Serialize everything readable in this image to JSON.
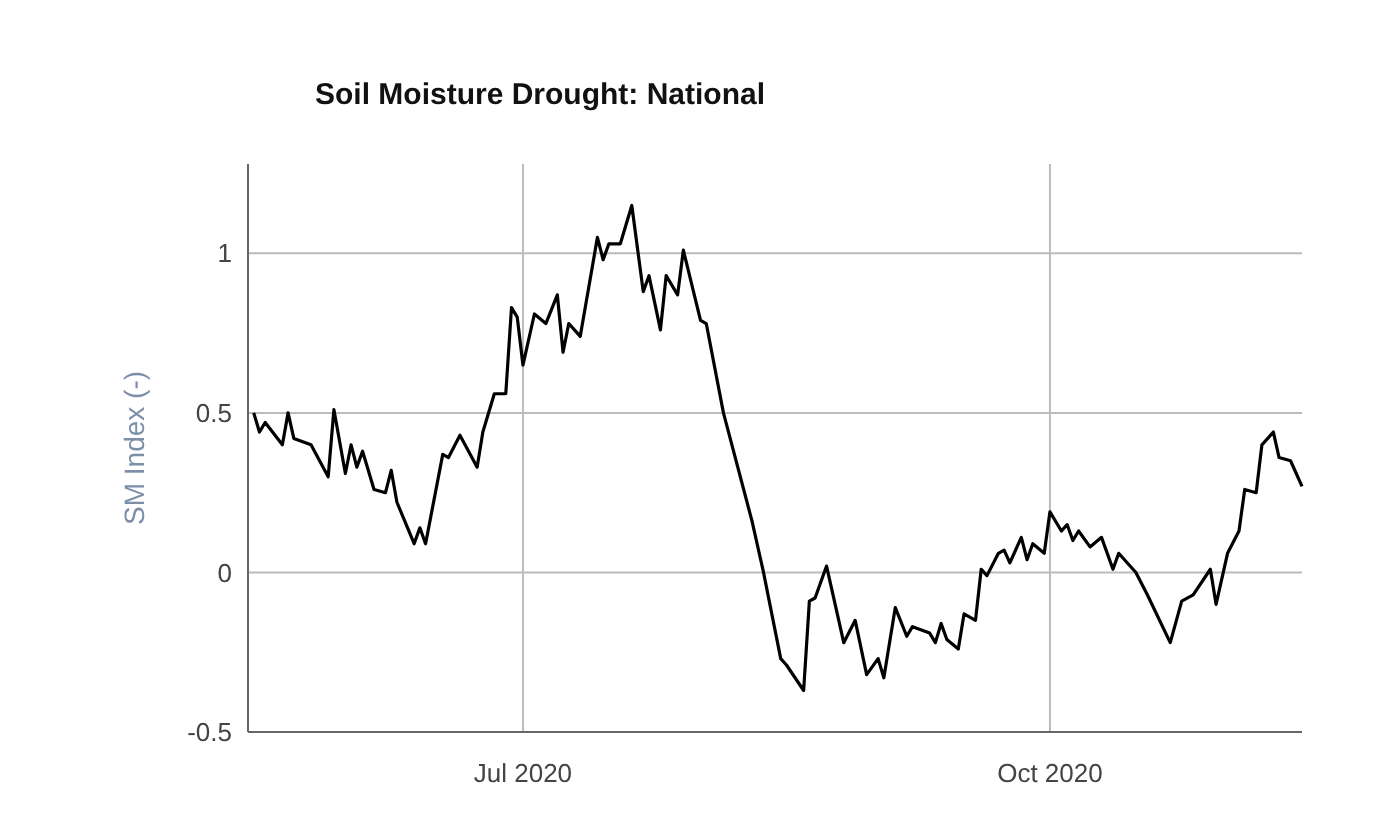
{
  "chart_data": {
    "type": "line",
    "title": "Soil Moisture Drought: National",
    "ylabel": "SM Index (-)",
    "xlim": [
      "2020-05-14",
      "2020-11-14"
    ],
    "xticks": [
      {
        "value": "2020-07-01",
        "label": "Jul 2020"
      },
      {
        "value": "2020-10-01",
        "label": "Oct 2020"
      }
    ],
    "ylim": [
      -0.5,
      1.28
    ],
    "yticks": [
      -0.5,
      0,
      0.5,
      1
    ],
    "grid": true,
    "series": [
      {
        "color": "#000000",
        "x": [
          "2020-05-15",
          "2020-05-16",
          "2020-05-17",
          "2020-05-20",
          "2020-05-21",
          "2020-05-22",
          "2020-05-25",
          "2020-05-28",
          "2020-05-29",
          "2020-05-31",
          "2020-06-01",
          "2020-06-02",
          "2020-06-03",
          "2020-06-05",
          "2020-06-07",
          "2020-06-08",
          "2020-06-09",
          "2020-06-12",
          "2020-06-13",
          "2020-06-14",
          "2020-06-17",
          "2020-06-18",
          "2020-06-20",
          "2020-06-23",
          "2020-06-24",
          "2020-06-26",
          "2020-06-28",
          "2020-06-29",
          "2020-06-30",
          "2020-07-01",
          "2020-07-03",
          "2020-07-05",
          "2020-07-07",
          "2020-07-08",
          "2020-07-09",
          "2020-07-11",
          "2020-07-14",
          "2020-07-15",
          "2020-07-16",
          "2020-07-18",
          "2020-07-20",
          "2020-07-22",
          "2020-07-23",
          "2020-07-25",
          "2020-07-26",
          "2020-07-28",
          "2020-07-29",
          "2020-08-01",
          "2020-08-02",
          "2020-08-05",
          "2020-08-10",
          "2020-08-12",
          "2020-08-15",
          "2020-08-16",
          "2020-08-19",
          "2020-08-20",
          "2020-08-21",
          "2020-08-23",
          "2020-08-26",
          "2020-08-28",
          "2020-08-30",
          "2020-09-01",
          "2020-09-02",
          "2020-09-04",
          "2020-09-06",
          "2020-09-07",
          "2020-09-10",
          "2020-09-11",
          "2020-09-12",
          "2020-09-13",
          "2020-09-15",
          "2020-09-16",
          "2020-09-18",
          "2020-09-19",
          "2020-09-20",
          "2020-09-22",
          "2020-09-23",
          "2020-09-24",
          "2020-09-26",
          "2020-09-27",
          "2020-09-28",
          "2020-09-30",
          "2020-10-01",
          "2020-10-03",
          "2020-10-04",
          "2020-10-05",
          "2020-10-06",
          "2020-10-08",
          "2020-10-10",
          "2020-10-12",
          "2020-10-13",
          "2020-10-16",
          "2020-10-18",
          "2020-10-22",
          "2020-10-24",
          "2020-10-26",
          "2020-10-29",
          "2020-10-30",
          "2020-11-01",
          "2020-11-03",
          "2020-11-04",
          "2020-11-06",
          "2020-11-07",
          "2020-11-09",
          "2020-11-10",
          "2020-11-12",
          "2020-11-14"
        ],
        "values": [
          0.5,
          0.44,
          0.47,
          0.4,
          0.5,
          0.42,
          0.4,
          0.3,
          0.51,
          0.31,
          0.4,
          0.33,
          0.38,
          0.26,
          0.25,
          0.32,
          0.22,
          0.09,
          0.14,
          0.09,
          0.37,
          0.36,
          0.43,
          0.33,
          0.44,
          0.56,
          0.56,
          0.83,
          0.8,
          0.65,
          0.81,
          0.78,
          0.87,
          0.69,
          0.78,
          0.74,
          1.05,
          0.98,
          1.03,
          1.03,
          1.15,
          0.88,
          0.93,
          0.76,
          0.93,
          0.87,
          1.01,
          0.79,
          0.78,
          0.5,
          0.16,
          0,
          -0.27,
          -0.29,
          -0.37,
          -0.09,
          -0.08,
          0.02,
          -0.22,
          -0.15,
          -0.32,
          -0.27,
          -0.33,
          -0.11,
          -0.2,
          -0.17,
          -0.19,
          -0.22,
          -0.16,
          -0.21,
          -0.24,
          -0.13,
          -0.15,
          0.01,
          -0.01,
          0.06,
          0.07,
          0.03,
          0.11,
          0.04,
          0.09,
          0.06,
          0.19,
          0.13,
          0.15,
          0.1,
          0.13,
          0.08,
          0.11,
          0.01,
          0.06,
          0,
          -0.07,
          -0.22,
          -0.09,
          -0.07,
          0.01,
          -0.1,
          0.06,
          0.13,
          0.26,
          0.25,
          0.4,
          0.44,
          0.36,
          0.35,
          0.27
        ]
      }
    ]
  }
}
